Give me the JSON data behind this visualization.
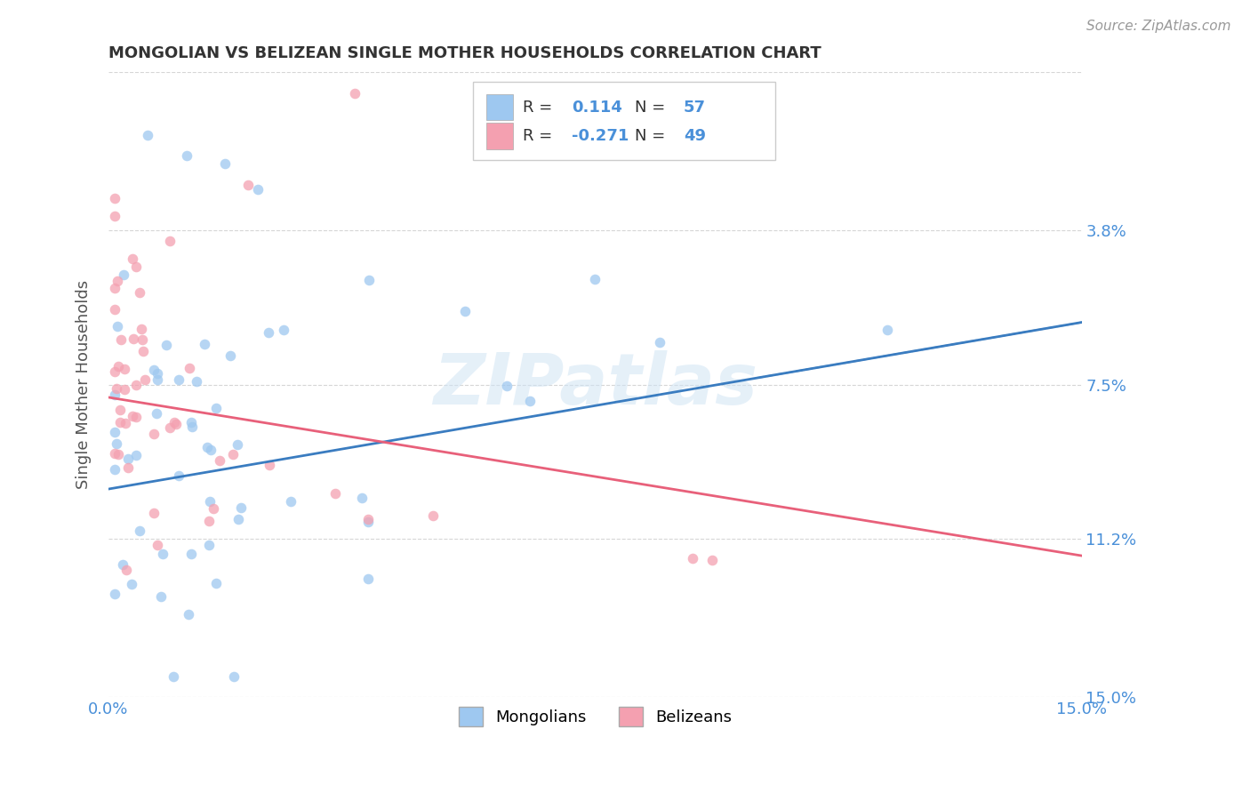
{
  "title": "MONGOLIAN VS BELIZEAN SINGLE MOTHER HOUSEHOLDS CORRELATION CHART",
  "source": "Source: ZipAtlas.com",
  "ylabel": "Single Mother Households",
  "xlim": [
    0.0,
    0.15
  ],
  "ylim": [
    0.0,
    0.15
  ],
  "ytick_vals": [
    0.0,
    0.038,
    0.075,
    0.112,
    0.15
  ],
  "ytick_labels_right": [
    "15.0%",
    "11.2%",
    "7.5%",
    "3.8%",
    ""
  ],
  "xticks": [
    0.0,
    0.15
  ],
  "xtick_labels": [
    "0.0%",
    "15.0%"
  ],
  "mongolian_color": "#9ec8f0",
  "belizean_color": "#f4a0b0",
  "mongolian_line_color": "#3a7cc0",
  "belizean_line_color": "#e8607a",
  "R_mongolian": 0.114,
  "N_mongolian": 57,
  "R_belizean": -0.271,
  "N_belizean": 49,
  "watermark": "ZIPatlas",
  "background_color": "#ffffff",
  "grid_color": "#cccccc",
  "title_color": "#333333",
  "axis_label_color": "#555555",
  "tick_color": "#4a90d9",
  "legend_text_color": "#333333",
  "legend_val_color": "#4a90d9"
}
